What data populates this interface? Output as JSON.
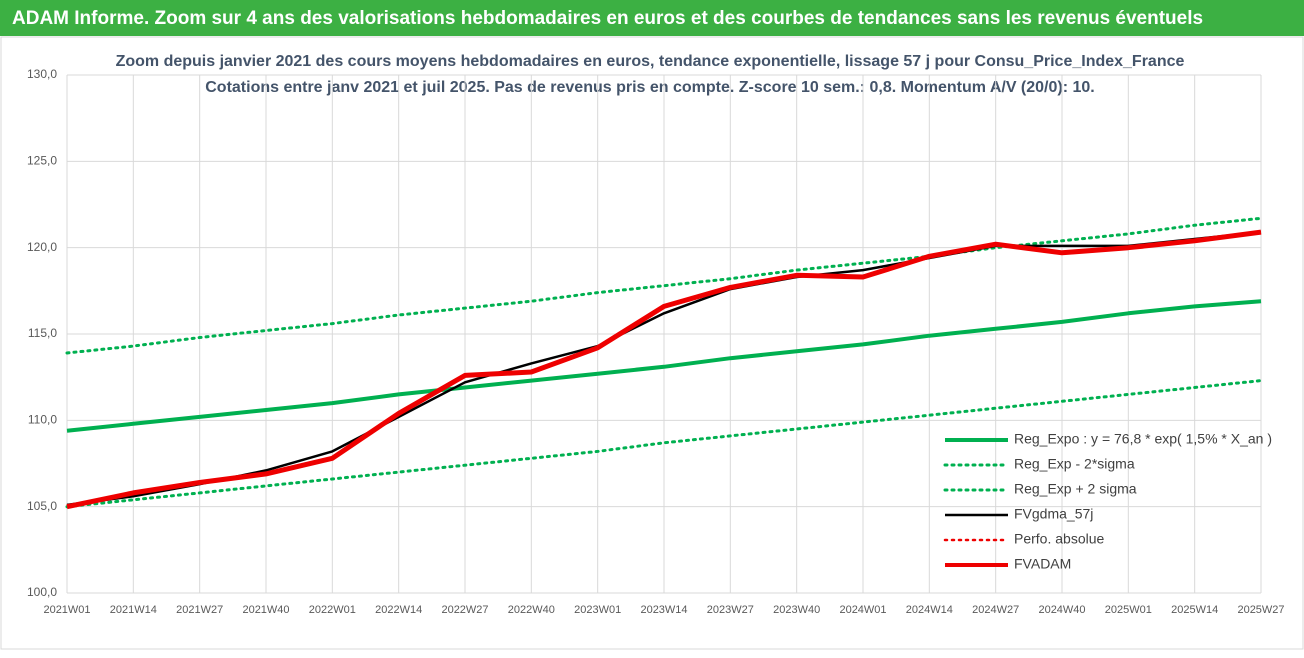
{
  "chart_data": {
    "type": "line",
    "title": "ADAM Informe. Zoom sur 4 ans des valorisations hebdomadaires en euros et des courbes de tendances sans les revenus éventuels",
    "subtitle": [
      "Zoom depuis janvier 2021 des cours moyens hebdomadaires en euros, tendance exponentielle, lissage 57 j pour Consu_Price_Index_France",
      "Cotations entre janv 2021 et juil 2025. Pas de revenus pris en compte. Z-score 10 sem.: 0,8. Momentum A/V (20/0): 10."
    ],
    "categories": [
      "2021W01",
      "2021W14",
      "2021W27",
      "2021W40",
      "2022W01",
      "2022W14",
      "2022W27",
      "2022W40",
      "2023W01",
      "2023W14",
      "2023W27",
      "2023W40",
      "2024W01",
      "2024W14",
      "2024W27",
      "2024W40",
      "2025W01",
      "2025W14",
      "2025W27"
    ],
    "series": [
      {
        "name": "Reg_Expo : y = 76,8 * exp( 1,5% *  X_an )",
        "color": "#00b050",
        "dash": "solid",
        "width": 4,
        "values": [
          109.4,
          109.8,
          110.2,
          110.6,
          111.0,
          111.5,
          111.9,
          112.3,
          112.7,
          113.1,
          113.6,
          114.0,
          114.4,
          114.9,
          115.3,
          115.7,
          116.2,
          116.6,
          116.9
        ]
      },
      {
        "name": "Reg_Exp - 2*sigma",
        "color": "#00b050",
        "dash": "dotted",
        "width": 3,
        "values": [
          105.0,
          105.4,
          105.8,
          106.2,
          106.6,
          107.0,
          107.4,
          107.8,
          108.2,
          108.7,
          109.1,
          109.5,
          109.9,
          110.3,
          110.7,
          111.1,
          111.5,
          111.9,
          112.3
        ]
      },
      {
        "name": "Reg_Exp + 2 sigma",
        "color": "#00b050",
        "dash": "dotted",
        "width": 3,
        "values": [
          113.9,
          114.3,
          114.8,
          115.2,
          115.6,
          116.1,
          116.5,
          116.9,
          117.4,
          117.8,
          118.2,
          118.7,
          119.1,
          119.5,
          120.0,
          120.4,
          120.8,
          121.3,
          121.7
        ]
      },
      {
        "name": "FVgdma_57j",
        "color": "#000000",
        "dash": "solid",
        "width": 2.5,
        "values": [
          105.1,
          105.6,
          106.3,
          107.1,
          108.2,
          110.2,
          112.2,
          113.3,
          114.3,
          116.2,
          117.6,
          118.3,
          118.7,
          119.4,
          120.1,
          120.1,
          120.1,
          120.5,
          120.9
        ]
      },
      {
        "name": "Perfo. absolue",
        "color": "#ee0000",
        "dash": "dotted",
        "width": 2.5,
        "values": [
          null,
          null,
          null,
          null,
          null,
          null,
          null,
          null,
          null,
          null,
          null,
          null,
          null,
          null,
          null,
          null,
          null,
          null,
          null
        ]
      },
      {
        "name": "FVADAM",
        "color": "#ee0000",
        "dash": "solid",
        "width": 5,
        "values": [
          105.0,
          105.8,
          106.4,
          106.9,
          107.8,
          110.4,
          112.6,
          112.8,
          114.2,
          116.6,
          117.7,
          118.4,
          118.3,
          119.5,
          120.2,
          119.7,
          120.0,
          120.4,
          120.9
        ]
      }
    ],
    "ylim": [
      100,
      130
    ],
    "yticks": [
      {
        "value": 100,
        "label": "100,0"
      },
      {
        "value": 105,
        "label": "105,0"
      },
      {
        "value": 110,
        "label": "110,0"
      },
      {
        "value": 115,
        "label": "115,0"
      },
      {
        "value": 120,
        "label": "120,0"
      },
      {
        "value": 125,
        "label": "125,0"
      },
      {
        "value": 130,
        "label": "130,0"
      }
    ],
    "grid": true
  }
}
